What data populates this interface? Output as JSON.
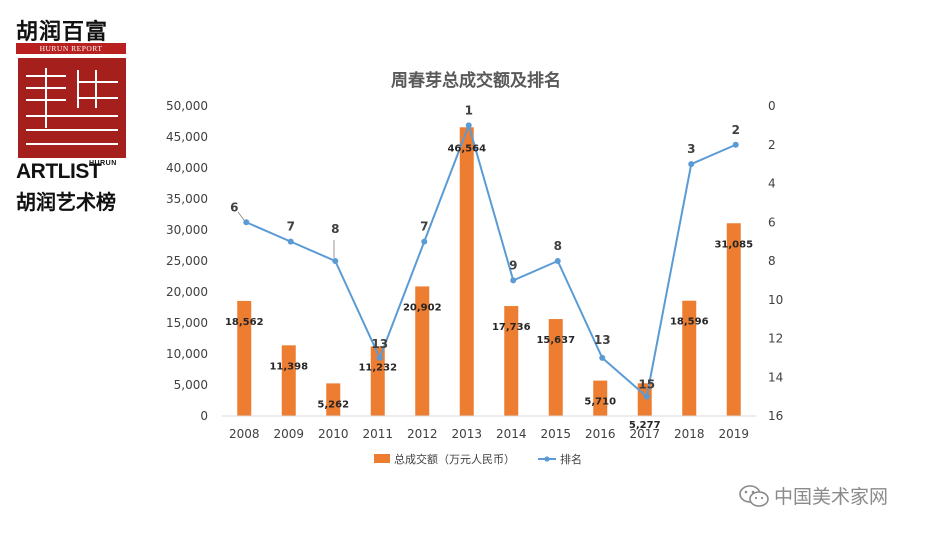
{
  "logo": {
    "cn_top": "胡润百富",
    "hurun_report": "HURUN REPORT",
    "art_list": "ARTLIST",
    "hurun_small": "HURUN",
    "cn_bottom": "胡润艺术榜"
  },
  "watermark": {
    "text": "中国美术家网",
    "icon": "wechat-icon"
  },
  "chart_data": {
    "type": "bar",
    "title": "周春芽总成交额及排名",
    "categories": [
      "2008",
      "2009",
      "2010",
      "2011",
      "2012",
      "2013",
      "2014",
      "2015",
      "2016",
      "2017",
      "2018",
      "2019"
    ],
    "series": [
      {
        "name": "总成交额（万元人民币）",
        "type": "bar",
        "axis": "left",
        "color": "#ed7d31",
        "values": [
          18562,
          11398,
          5262,
          11232,
          20902,
          46564,
          17736,
          15637,
          5710,
          5277,
          18596,
          31085
        ],
        "labels": [
          "18,562",
          "11,398",
          "5,262",
          "11,232",
          "20,902",
          "46,564",
          "17,736",
          "15,637",
          "5,710",
          "5,277",
          "18,596",
          "31,085"
        ]
      },
      {
        "name": "排名",
        "type": "line",
        "axis": "right",
        "color": "#5b9bd5",
        "values": [
          6,
          7,
          8,
          13,
          7,
          1,
          9,
          8,
          13,
          15,
          3,
          2
        ],
        "labels": [
          "6",
          "7",
          "8",
          "13",
          "7",
          "1",
          "9",
          "8",
          "13",
          "15",
          "3",
          "2"
        ]
      }
    ],
    "y_left": {
      "min": 0,
      "max": 50000,
      "step": 5000,
      "tick_labels": [
        "0",
        "5,000",
        "10,000",
        "15,000",
        "20,000",
        "25,000",
        "30,000",
        "35,000",
        "40,000",
        "45,000",
        "50,000"
      ]
    },
    "y_right": {
      "min": 0,
      "max": 16,
      "step": 2,
      "reversed": true,
      "tick_labels": [
        "0",
        "2",
        "4",
        "6",
        "8",
        "10",
        "12",
        "14",
        "16"
      ]
    },
    "legend_position": "bottom",
    "grid": false
  }
}
